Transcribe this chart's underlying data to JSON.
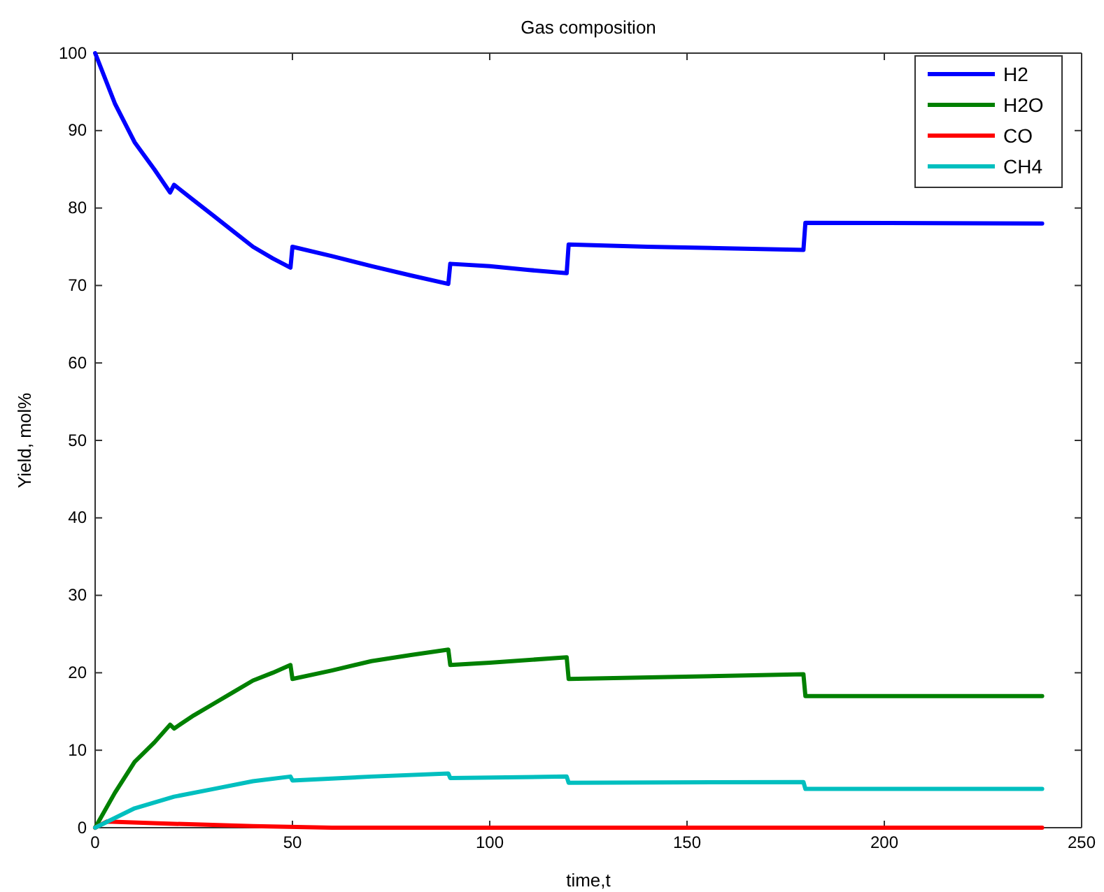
{
  "chart_data": {
    "type": "line",
    "title": "Gas composition",
    "xlabel": "time,t",
    "ylabel": "Yield, mol%",
    "xlim": [
      0,
      250
    ],
    "xticks": [
      0,
      50,
      100,
      150,
      200,
      250
    ],
    "ylim": [
      0,
      100
    ],
    "yticks": [
      0,
      10,
      20,
      30,
      40,
      50,
      60,
      70,
      80,
      90,
      100
    ],
    "legend": "top right",
    "series": [
      {
        "name": "H2",
        "color": "#0000ff",
        "x": [
          0,
          5,
          10,
          15,
          19,
          20,
          25,
          30,
          35,
          40,
          45,
          49.5,
          50,
          60,
          70,
          80,
          89.5,
          90,
          100,
          110,
          119.5,
          120,
          140,
          160,
          179.5,
          180,
          240
        ],
        "values": [
          100,
          93.5,
          88.5,
          85,
          82,
          83,
          81,
          79,
          77,
          75,
          73.5,
          72.3,
          75,
          73.8,
          72.5,
          71.3,
          70.2,
          72.8,
          72.5,
          72,
          71.6,
          75.3,
          75,
          74.8,
          74.6,
          78.1,
          78
        ]
      },
      {
        "name": "H2O",
        "color": "#008000",
        "x": [
          0,
          5,
          10,
          15,
          19,
          20,
          25,
          30,
          35,
          40,
          45,
          49.5,
          50,
          60,
          70,
          80,
          89.5,
          90,
          100,
          119.5,
          120,
          179.5,
          180,
          240
        ],
        "values": [
          0,
          4.5,
          8.5,
          11,
          13.3,
          12.8,
          14.5,
          16,
          17.5,
          19,
          20,
          21,
          19.2,
          20.3,
          21.5,
          22.3,
          23,
          21,
          21.3,
          22,
          19.2,
          19.8,
          17,
          17
        ]
      },
      {
        "name": "CO",
        "color": "#ff0000",
        "x": [
          0,
          3,
          20,
          40,
          60,
          240
        ],
        "values": [
          0,
          0.8,
          0.5,
          0.2,
          0,
          0
        ]
      },
      {
        "name": "CH4",
        "color": "#00bfbf",
        "x": [
          0,
          10,
          20,
          30,
          40,
          49.5,
          50,
          70,
          89.5,
          90,
          119.5,
          120,
          179.5,
          180,
          240
        ],
        "values": [
          0,
          2.5,
          4,
          5,
          6,
          6.6,
          6.1,
          6.6,
          7,
          6.4,
          6.6,
          5.8,
          5.9,
          5,
          5
        ]
      }
    ]
  }
}
